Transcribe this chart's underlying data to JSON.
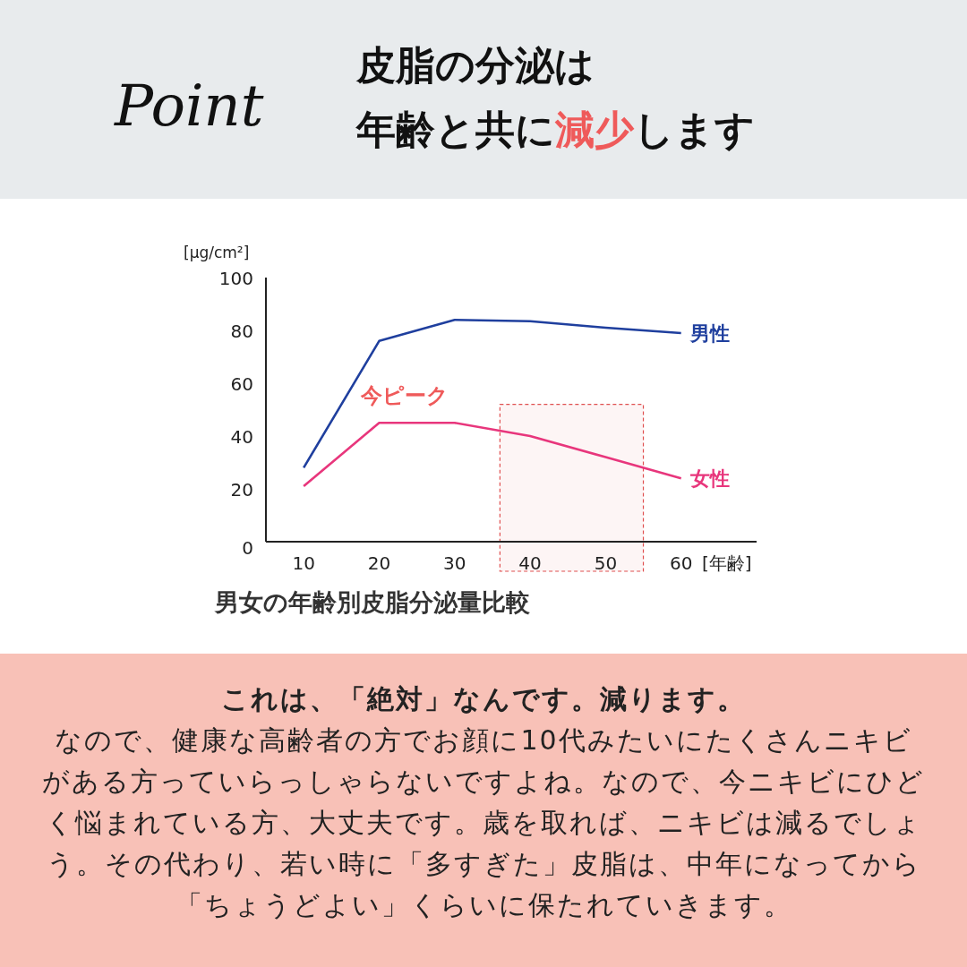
{
  "chart_data": {
    "type": "line",
    "title": "皮脂の分泌は",
    "subtitle": "年齢と共に**減少**します",
    "ylabel": "[μg/cm²]",
    "xlabel": "[年齢]",
    "x": [
      10,
      20,
      30,
      40,
      50,
      60
    ],
    "series": [
      {
        "name": "男性",
        "color": "#1f3f9e",
        "values": [
          28,
          76,
          84,
          83.5,
          81,
          79
        ]
      },
      {
        "name": "女性",
        "color": "#e8367c",
        "values": [
          21,
          45,
          45,
          40,
          32,
          24
        ]
      }
    ],
    "xlim": [
      5,
      70
    ],
    "ylim": [
      0,
      100
    ],
    "xticks": [
      10,
      20,
      30,
      40,
      50,
      60
    ],
    "yticks": [
      0,
      20,
      40,
      60,
      80,
      100
    ],
    "grid": false,
    "marker": "none",
    "line_style": "solid",
    "annotations": [
      {
        "text": "今ピーク",
        "x": 20,
        "y": 45
      },
      "Point",
      "男女の年齢別皮脂分泌量比較",
      "これは、「絶対」なんです。減ります。",
      "なので、健康な高齢者の方でお顔に10代みたいにたくさんニキビがある方っていらっしゃらないですよね。なので、今ニキビにひどく悩まれている方、大丈夫です。歳を取れば、ニキビは減るでしょう。その代わり、若い時に「多すぎた」皮脂は、中年になってから「ちょうどよい」くらいに保たれていきます。"
    ],
    "bands": [
      {
        "axis": "x",
        "from": 36,
        "to": 55,
        "color": "#e05050"
      }
    ]
  }
}
